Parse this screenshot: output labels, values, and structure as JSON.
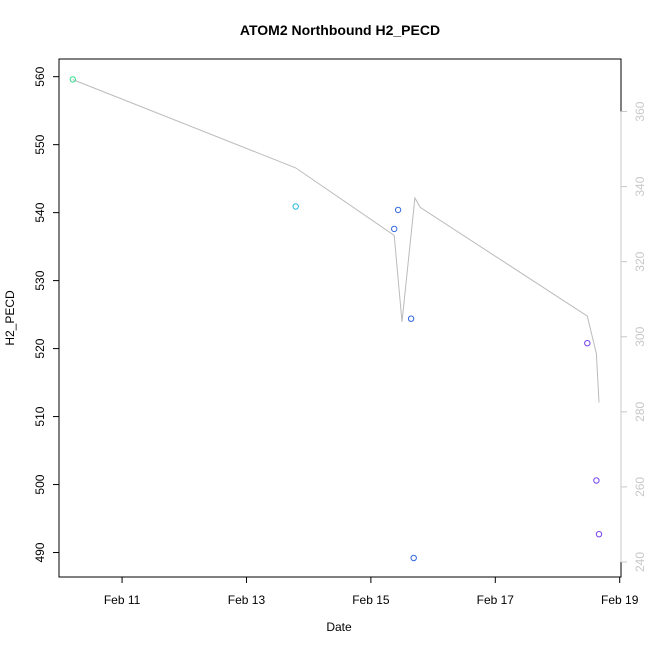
{
  "chart_data": {
    "type": "scatter",
    "title": "ATOM2 Northbound H2_PECD",
    "xlabel": "Date",
    "ylabel": "H2_PECD",
    "x_ticks": [
      {
        "label": "Feb 11",
        "value": "2000-02-11"
      },
      {
        "label": "Feb 13",
        "value": "2000-02-13"
      },
      {
        "label": "Feb 15",
        "value": "2000-02-15"
      },
      {
        "label": "Feb 17",
        "value": "2000-02-17"
      },
      {
        "label": "Feb 19",
        "value": "2000-02-19"
      }
    ],
    "xlim": [
      "2000-02-09T23:40",
      "2000-02-19T00:30"
    ],
    "ylim": [
      486.4,
      562.6
    ],
    "y_ticks": [
      490,
      500,
      510,
      520,
      530,
      540,
      550,
      560
    ],
    "y2lim": [
      236,
      374
    ],
    "y2_ticks": [
      240,
      260,
      280,
      300,
      320,
      340,
      360
    ],
    "grid": false,
    "legend": "none",
    "points": [
      {
        "x": "2000-02-10T05:00",
        "y": 559.6,
        "color": "#33dd88"
      },
      {
        "x": "2000-02-13T19:00",
        "y": 540.9,
        "color": "#22bbdd"
      },
      {
        "x": "2000-02-15T09:00",
        "y": 537.6,
        "color": "#3366dd"
      },
      {
        "x": "2000-02-15T10:30",
        "y": 540.4,
        "color": "#3366dd"
      },
      {
        "x": "2000-02-15T15:30",
        "y": 524.4,
        "color": "#3366dd"
      },
      {
        "x": "2000-02-15T16:30",
        "y": 489.2,
        "color": "#3366dd"
      },
      {
        "x": "2000-02-18T11:30",
        "y": 520.8,
        "color": "#7744ee"
      },
      {
        "x": "2000-02-18T15:00",
        "y": 500.6,
        "color": "#7744ee"
      },
      {
        "x": "2000-02-18T16:00",
        "y": 492.7,
        "color": "#7744ee"
      }
    ],
    "line_series_y2": {
      "color": "#bbbbbb",
      "points": [
        {
          "x": "2000-02-10T05:00",
          "y": 368.5
        },
        {
          "x": "2000-02-13T19:00",
          "y": 345.0
        },
        {
          "x": "2000-02-15T09:00",
          "y": 327.0
        },
        {
          "x": "2000-02-15T12:00",
          "y": 304.0
        },
        {
          "x": "2000-02-15T17:00",
          "y": 337.0
        },
        {
          "x": "2000-02-15T19:00",
          "y": 334.5
        },
        {
          "x": "2000-02-18T11:30",
          "y": 305.5
        },
        {
          "x": "2000-02-18T15:00",
          "y": 295.5
        },
        {
          "x": "2000-02-18T16:00",
          "y": 282.5
        }
      ]
    }
  }
}
